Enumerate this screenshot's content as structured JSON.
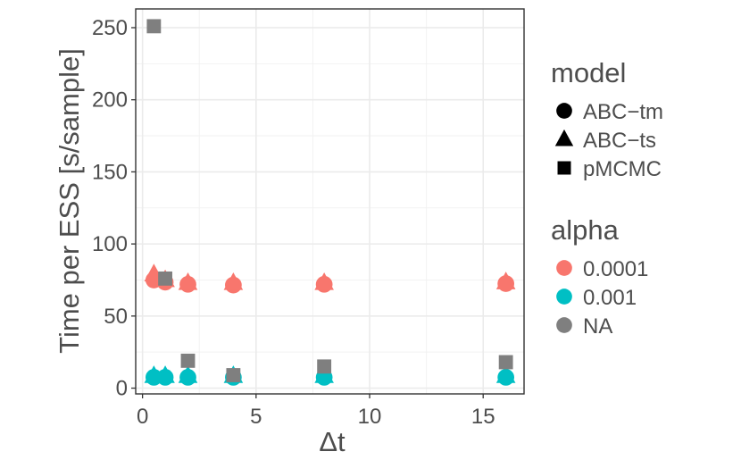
{
  "chart_data": {
    "type": "scatter",
    "xlabel": "Δt",
    "ylabel": "Time per ESS [s/sample]",
    "xlim": [
      -0.3,
      16.8
    ],
    "ylim": [
      -4,
      263
    ],
    "x_ticks": [
      0,
      5,
      10,
      15
    ],
    "y_ticks": [
      0,
      50,
      100,
      150,
      200,
      250
    ],
    "grid": true,
    "legend_position": "right",
    "legends": [
      {
        "title": "model",
        "items": [
          {
            "label": "ABC−tm",
            "shape": "circle"
          },
          {
            "label": "ABC−ts",
            "shape": "triangle"
          },
          {
            "label": "pMCMC",
            "shape": "square"
          }
        ]
      },
      {
        "title": "alpha",
        "items": [
          {
            "label": "0.0001",
            "color": "#F8766D"
          },
          {
            "label": "0.001",
            "color": "#00BFC4"
          },
          {
            "label": "NA",
            "color": "#7F7F7F"
          }
        ]
      }
    ],
    "series": [
      {
        "model": "ABC−tm",
        "alpha": "0.0001",
        "shape": "circle",
        "color": "#F8766D",
        "x": [
          0.5,
          1,
          2,
          4,
          8,
          16
        ],
        "y": [
          75,
          73.5,
          72,
          71.5,
          72,
          72.5
        ]
      },
      {
        "model": "ABC−ts",
        "alpha": "0.0001",
        "shape": "triangle",
        "color": "#F8766D",
        "x": [
          0.5,
          1,
          2,
          4,
          8,
          16
        ],
        "y": [
          79,
          75,
          73,
          73,
          73,
          73.5
        ]
      },
      {
        "model": "ABC−tm",
        "alpha": "0.001",
        "shape": "circle",
        "color": "#00BFC4",
        "x": [
          0.5,
          1,
          2,
          4,
          8,
          16
        ],
        "y": [
          7.5,
          7.5,
          7.5,
          7.5,
          7.5,
          7.5
        ]
      },
      {
        "model": "ABC−ts",
        "alpha": "0.001",
        "shape": "triangle",
        "color": "#00BFC4",
        "x": [
          0.5,
          1,
          2,
          4,
          8,
          16
        ],
        "y": [
          8.5,
          8.5,
          8.5,
          8.5,
          8.5,
          8.5
        ]
      },
      {
        "model": "pMCMC",
        "alpha": "NA",
        "shape": "square",
        "color": "#7F7F7F",
        "x": [
          0.5,
          1,
          2,
          4,
          8,
          16
        ],
        "y": [
          251,
          76,
          19,
          9,
          15,
          18
        ]
      }
    ]
  }
}
